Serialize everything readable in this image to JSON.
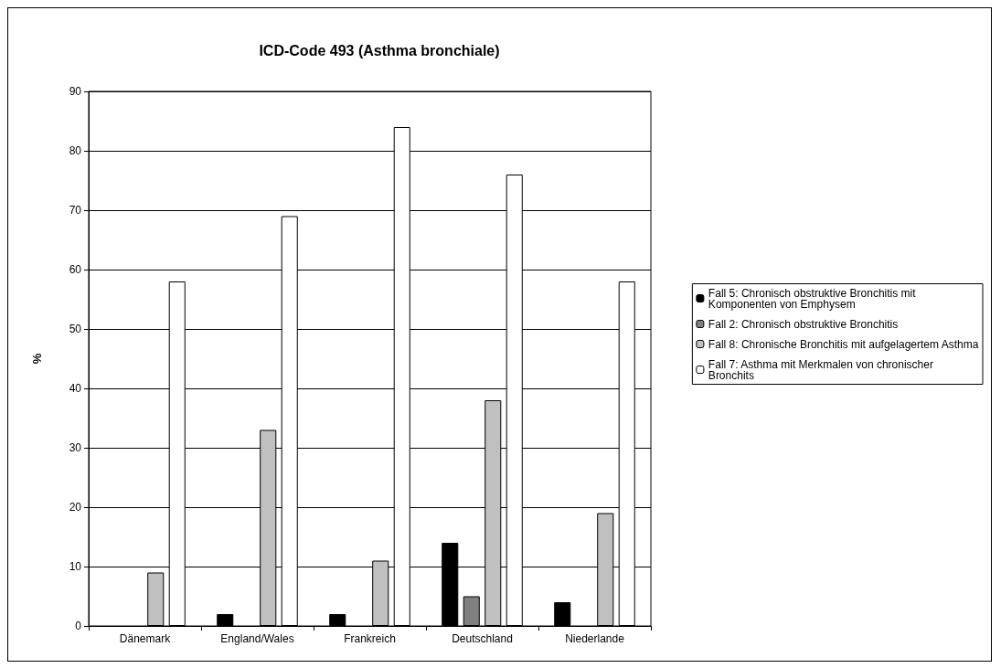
{
  "chart_data": {
    "type": "bar",
    "title": "ICD-Code 493 (Asthma bronchiale)",
    "ylabel": "%",
    "categories": [
      "Dänemark",
      "England/Wales",
      "Frankreich",
      "Deutschland",
      "Niederlande"
    ],
    "series": [
      {
        "name": "Fall 5: Chronisch obstruktive Bronchitis mit Komponenten von Emphysem",
        "color": "#000000",
        "values": [
          0,
          2,
          2,
          14,
          4
        ]
      },
      {
        "name": "Fall 2: Chronisch obstruktive Bronchitis",
        "color": "#808080",
        "values": [
          0,
          0,
          0,
          5,
          0
        ]
      },
      {
        "name": "Fall 8: Chronische Bronchitis mit aufgelagertem Asthma",
        "color": "#c0c0c0",
        "values": [
          9,
          33,
          11,
          38,
          19
        ]
      },
      {
        "name": "Fall 7: Asthma mit Merkmalen von chronischer Bronchits",
        "color": "#ffffff",
        "values": [
          58,
          69,
          84,
          76,
          58
        ]
      }
    ],
    "ylim": [
      0,
      90
    ],
    "yticks": [
      0,
      10,
      20,
      30,
      40,
      50,
      60,
      70,
      80,
      90
    ],
    "grid": "y",
    "legend": "right"
  }
}
